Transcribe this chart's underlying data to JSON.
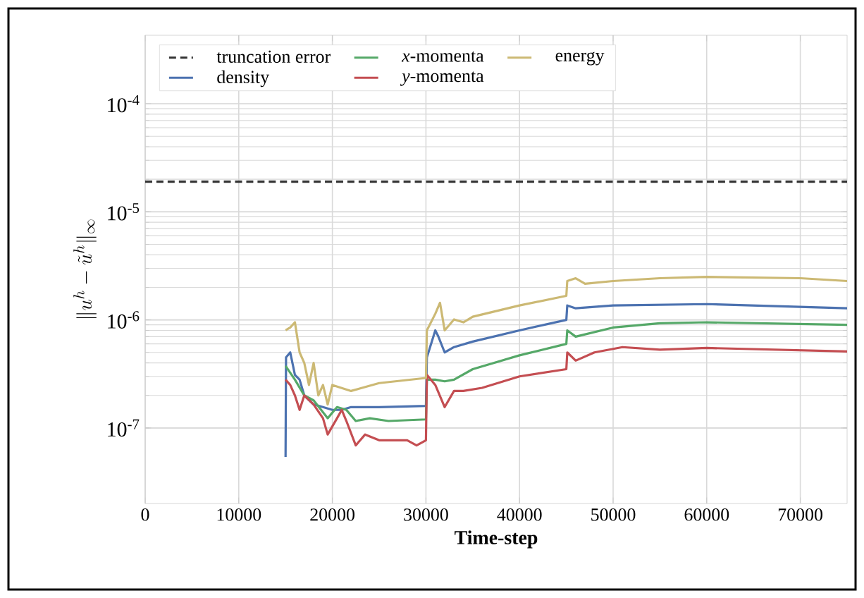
{
  "chart_data": {
    "type": "line",
    "xlabel": "Time-step",
    "ylabel": "\\|u^h -\\tilde{u}^h \\|_\\infty",
    "xlim": [
      0,
      75000
    ],
    "xticks": [
      0,
      10000,
      20000,
      30000,
      40000,
      50000,
      60000,
      70000
    ],
    "ylim": [
      2e-08,
      0.00043
    ],
    "yticks": [
      {
        "value": 1e-07,
        "label": "10$^{-7}$"
      },
      {
        "value": 1e-06,
        "label": "10$^{-6}$"
      },
      {
        "value": 1e-05,
        "label": "10$^{-5}$"
      },
      {
        "value": 0.0001,
        "label": "10$^{-4}$"
      }
    ],
    "log": true,
    "grid": true,
    "legend": "top left",
    "series": [
      {
        "name": "truncation error",
        "color": "#333333",
        "line_style": "dashed",
        "x": [
          0,
          75000
        ],
        "values": [
          1.9e-05,
          1.9e-05
        ]
      },
      {
        "name": "density",
        "color": "#4c72b0",
        "x": [
          15000,
          15050,
          15500,
          16000,
          16500,
          17000,
          18000,
          19000,
          20000,
          21000,
          22000,
          23000,
          25000,
          30000,
          30100,
          31000,
          31300,
          32000,
          33000,
          35000,
          40000,
          45000,
          45100,
          46000,
          50000,
          60000,
          75000
        ],
        "values": [
          5.4e-08,
          4.5e-07,
          5e-07,
          3.1e-07,
          2.8e-07,
          2e-07,
          1.65e-07,
          1.56e-07,
          1.47e-07,
          1.47e-07,
          1.56e-07,
          1.56e-07,
          1.56e-07,
          1.6e-07,
          4.5e-07,
          8e-07,
          7.1e-07,
          5e-07,
          5.6e-07,
          6.3e-07,
          8e-07,
          1e-06,
          1.36e-06,
          1.28e-06,
          1.36e-06,
          1.4e-06,
          1.28e-06
        ]
      },
      {
        "name": "*x*-momenta",
        "color": "#55a868",
        "x": [
          15000,
          16000,
          17000,
          18000,
          19500,
          20500,
          21500,
          22500,
          24000,
          26000,
          30000,
          30100,
          31000,
          32000,
          33000,
          35000,
          40000,
          45000,
          45100,
          46000,
          50000,
          55000,
          60000,
          75000
        ],
        "values": [
          3.75e-07,
          2.8e-07,
          2e-07,
          1.8e-07,
          1.23e-07,
          1.56e-07,
          1.47e-07,
          1.16e-07,
          1.23e-07,
          1.16e-07,
          1.2e-07,
          2.8e-07,
          2.8e-07,
          2.7e-07,
          2.8e-07,
          3.5e-07,
          4.7e-07,
          6e-07,
          8e-07,
          7e-07,
          8.5e-07,
          9.3e-07,
          9.5e-07,
          9e-07
        ]
      },
      {
        "name": "*y*-momenta",
        "color": "#c44e52",
        "x": [
          15000,
          15500,
          16000,
          16500,
          17000,
          18000,
          19000,
          19500,
          20500,
          21000,
          21500,
          22500,
          23500,
          25000,
          28000,
          29000,
          30000,
          30100,
          31000,
          32000,
          33000,
          34000,
          36000,
          40000,
          45000,
          45100,
          46000,
          48000,
          51000,
          55000,
          60000,
          75000
        ],
        "values": [
          2.8e-07,
          2.5e-07,
          2e-07,
          1.47e-07,
          2e-07,
          1.65e-07,
          1.23e-07,
          8.7e-08,
          1.23e-07,
          1.47e-07,
          1.16e-07,
          6.9e-08,
          8.7e-08,
          7.7e-08,
          7.7e-08,
          6.9e-08,
          7.7e-08,
          3.1e-07,
          2.5e-07,
          1.56e-07,
          2.2e-07,
          2.2e-07,
          2.35e-07,
          3e-07,
          3.5e-07,
          5e-07,
          4.2e-07,
          5e-07,
          5.6e-07,
          5.3e-07,
          5.5e-07,
          5.1e-07
        ]
      },
      {
        "name": "energy",
        "color": "#ccb974",
        "x": [
          15000,
          15500,
          16000,
          16500,
          17000,
          17500,
          18000,
          18500,
          19000,
          19500,
          20000,
          22000,
          25000,
          30000,
          30100,
          31000,
          31500,
          32000,
          33000,
          34000,
          35000,
          40000,
          45000,
          45100,
          46000,
          47000,
          50000,
          55000,
          60000,
          70000,
          75000
        ],
        "values": [
          8e-07,
          8.5e-07,
          9.5e-07,
          5e-07,
          4e-07,
          2.5e-07,
          4e-07,
          2e-07,
          2.5e-07,
          1.65e-07,
          2.5e-07,
          2.2e-07,
          2.6e-07,
          2.9e-07,
          8e-07,
          1.14e-06,
          1.44e-06,
          8e-07,
          1.01e-06,
          9.5e-07,
          1.07e-06,
          1.36e-06,
          1.67e-06,
          2.29e-06,
          2.43e-06,
          2.16e-06,
          2.29e-06,
          2.43e-06,
          2.5e-06,
          2.43e-06,
          2.29e-06
        ]
      }
    ]
  }
}
